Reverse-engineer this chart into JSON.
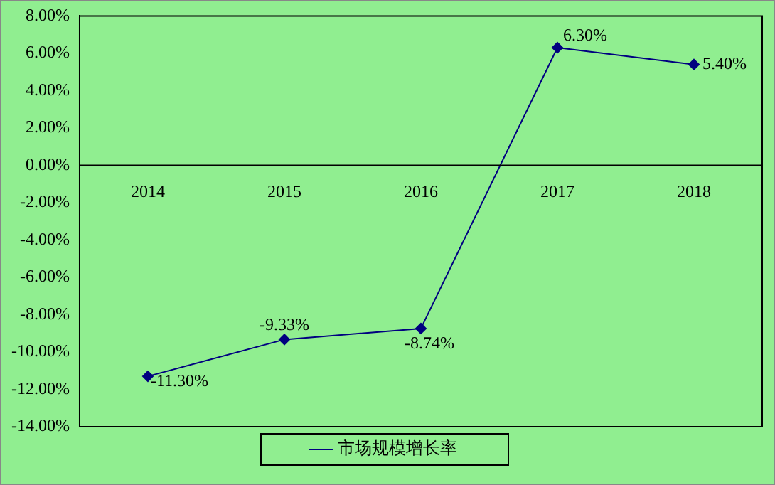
{
  "chart_data": {
    "type": "line",
    "categories": [
      "2014",
      "2015",
      "2016",
      "2017",
      "2018"
    ],
    "series": [
      {
        "name": "市场规模增长率",
        "color": "#000080",
        "values": [
          -11.3,
          -9.33,
          -8.74,
          6.3,
          5.4
        ],
        "value_labels": [
          "-11.30%",
          "-9.33%",
          "-8.74%",
          "6.30%",
          "5.40%"
        ]
      }
    ],
    "ylim": [
      -14,
      8
    ],
    "yticks": [
      {
        "value": 8,
        "label": "8.00%"
      },
      {
        "value": 6,
        "label": "6.00%"
      },
      {
        "value": 4,
        "label": "4.00%"
      },
      {
        "value": 2,
        "label": "2.00%"
      },
      {
        "value": 0,
        "label": "0.00%"
      },
      {
        "value": -2,
        "label": "-2.00%"
      },
      {
        "value": -4,
        "label": "-4.00%"
      },
      {
        "value": -6,
        "label": "-6.00%"
      },
      {
        "value": -8,
        "label": "-8.00%"
      },
      {
        "value": -10,
        "label": "-10.00%"
      },
      {
        "value": -12,
        "label": "-12.00%"
      },
      {
        "value": -14,
        "label": "-14.00%"
      }
    ],
    "grid": false,
    "legend": "bottom",
    "marker": "diamond",
    "line_style": "solid"
  }
}
